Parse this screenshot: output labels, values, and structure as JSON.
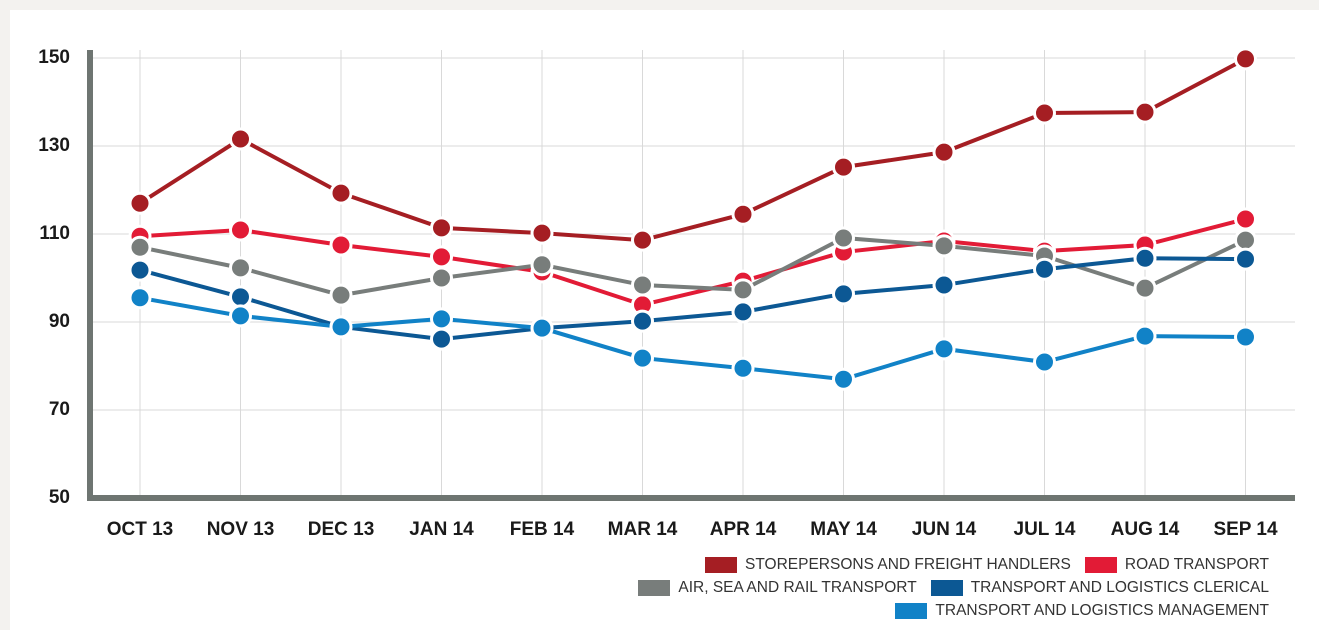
{
  "chart_data": {
    "type": "line",
    "categories": [
      "OCT 13",
      "NOV 13",
      "DEC 13",
      "JAN 14",
      "FEB 14",
      "MAR 14",
      "APR 14",
      "MAY 14",
      "JUN 14",
      "JUL 14",
      "AUG 14",
      "SEP 14"
    ],
    "series": [
      {
        "name": "STOREPERSONS AND FREIGHT HANDLERS",
        "color": "#a51e23",
        "values": [
          117.0,
          131.6,
          119.3,
          111.4,
          110.2,
          108.6,
          114.5,
          125.2,
          128.6,
          137.5,
          137.7,
          149.8
        ]
      },
      {
        "name": "ROAD TRANSPORT",
        "color": "#e21b36",
        "values": [
          109.5,
          110.9,
          107.5,
          104.8,
          101.4,
          93.9,
          99.3,
          105.9,
          108.4,
          106.1,
          107.5,
          113.4
        ]
      },
      {
        "name": "AIR, SEA AND RAIL TRANSPORT",
        "color": "#787d7b",
        "values": [
          107.0,
          102.3,
          96.1,
          100.0,
          103.0,
          98.4,
          97.3,
          109.1,
          107.3,
          105.0,
          97.7,
          108.6
        ]
      },
      {
        "name": "TRANSPORT AND LOGISTICS CLERICAL",
        "color": "#0c5894",
        "values": [
          101.8,
          95.7,
          88.9,
          86.1,
          88.6,
          90.2,
          92.3,
          96.4,
          98.4,
          102.0,
          104.5,
          104.3
        ]
      },
      {
        "name": "TRANSPORT AND LOGISTICS MANAGEMENT",
        "color": "#1182c7",
        "values": [
          95.5,
          91.4,
          88.9,
          90.7,
          88.6,
          81.8,
          79.5,
          77.0,
          83.9,
          80.9,
          86.8,
          86.6
        ]
      }
    ],
    "ylim": [
      50,
      150
    ],
    "yticks": [
      50,
      70,
      90,
      110,
      130,
      150
    ],
    "grid": true
  }
}
